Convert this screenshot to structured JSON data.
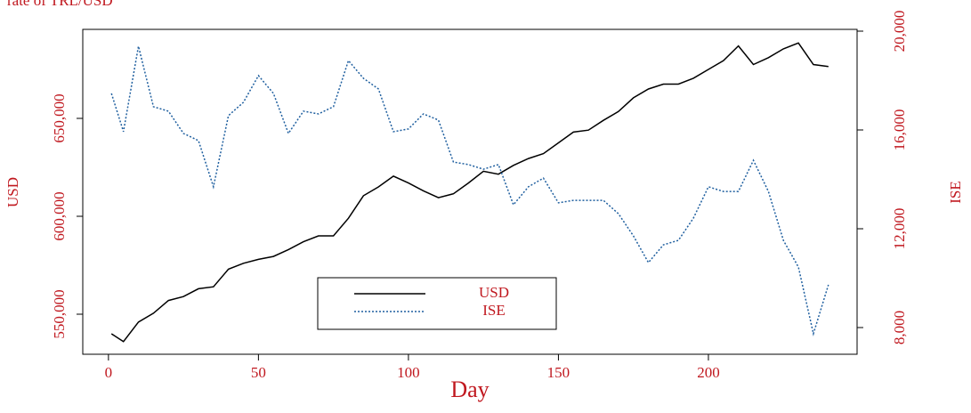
{
  "chart_data": {
    "type": "line",
    "title": "rate of TRL/USD",
    "x_label": "Day",
    "y_label": "USD",
    "y2_label": "ISE",
    "x": [
      1,
      5,
      10,
      15,
      20,
      25,
      30,
      35,
      40,
      45,
      50,
      55,
      60,
      65,
      70,
      75,
      80,
      85,
      90,
      95,
      100,
      105,
      110,
      115,
      120,
      125,
      130,
      135,
      140,
      145,
      150,
      155,
      160,
      165,
      170,
      175,
      180,
      185,
      190,
      195,
      200,
      205,
      210,
      215,
      220,
      225,
      230,
      235,
      240
    ],
    "series": [
      {
        "name": "USD",
        "color": "#000000",
        "linestyle": "solid",
        "values": [
          540000,
          536000,
          546000,
          550500,
          557000,
          559000,
          563000,
          564000,
          573000,
          576000,
          578000,
          579500,
          583000,
          587000,
          590000,
          590000,
          599000,
          610500,
          615000,
          620500,
          617000,
          613000,
          609500,
          611500,
          617000,
          623000,
          621500,
          626000,
          629500,
          632000,
          637500,
          643000,
          644000,
          649000,
          653500,
          660500,
          665000,
          667500,
          667500,
          670500,
          675000,
          679500,
          687000,
          677500,
          681000,
          685500,
          688500,
          677500,
          676500
        ]
      },
      {
        "name": "ISE",
        "color": "#1f5f9f",
        "linestyle": "dotted",
        "axis": "y2",
        "values": [
          17480,
          15930,
          19390,
          16940,
          16760,
          15860,
          15570,
          13700,
          16580,
          17120,
          18200,
          17480,
          15860,
          16760,
          16650,
          16940,
          18810,
          18090,
          17660,
          15930,
          16040,
          16650,
          16400,
          14700,
          14600,
          14410,
          14600,
          12970,
          13700,
          14050,
          13050,
          13150,
          13150,
          13150,
          12610,
          11710,
          10630,
          11350,
          11530,
          12430,
          13700,
          13510,
          13510,
          14770,
          13510,
          11530,
          10450,
          7750,
          9730
        ]
      }
    ],
    "xlim": [
      -8.56,
      249.56
    ],
    "xticks": [
      0,
      50,
      100,
      150,
      200
    ],
    "ylim": [
      529545,
      695455
    ],
    "yticks": [
      {
        "value": 550000,
        "label": "550,000"
      },
      {
        "value": 600000,
        "label": "600,000"
      },
      {
        "value": 650000,
        "label": "650,000"
      }
    ],
    "y2lim": [
      6919,
      20072
    ],
    "y2ticks": [
      {
        "value": 8000,
        "label": "8,000"
      },
      {
        "value": 12000,
        "label": "12,000"
      },
      {
        "value": 16000,
        "label": "16,000"
      },
      {
        "value": 20000,
        "label": "20,000"
      }
    ],
    "legend": "bottom-center"
  }
}
